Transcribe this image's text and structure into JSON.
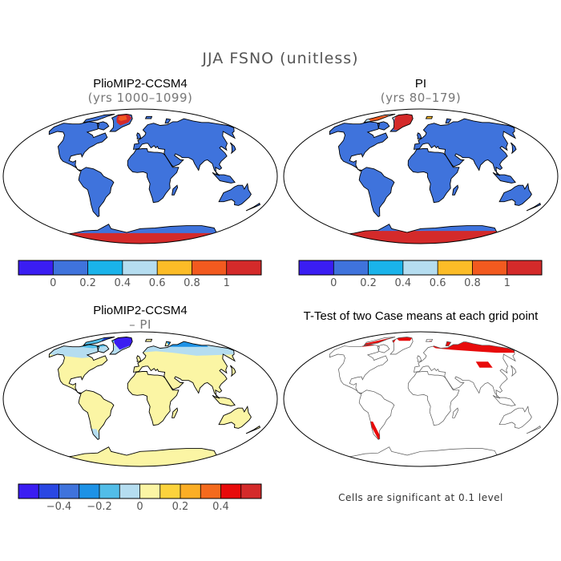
{
  "title": "JJA FSNO (unitless)",
  "panels": [
    {
      "title": "PlioMIP2-CCSM4",
      "subtitle": "(yrs 1000–1099)"
    },
    {
      "title": "PI",
      "subtitle": "(yrs 80–179)"
    },
    {
      "title": "PlioMIP2-CCSM4",
      "subtitle": "– PI"
    },
    {
      "title": "T-Test of two Case means at each grid point",
      "subtitle": ""
    }
  ],
  "colorbars": [
    {
      "colors": [
        "#3a1df2",
        "#3f73dc",
        "#1ab3ea",
        "#b5ddf0",
        "#fcbc27",
        "#f25a1f",
        "#d42a2a"
      ],
      "ticks": [
        "0",
        "0.2",
        "0.4",
        "0.6",
        "0.8",
        "1"
      ]
    },
    {
      "colors": [
        "#3a1df2",
        "#2a47e3",
        "#3f73dc",
        "#1d92e6",
        "#52bde8",
        "#b5ddf0",
        "#fbf5a4",
        "#fcd33c",
        "#fbae25",
        "#f46a1d",
        "#e80b0b",
        "#d42a2a"
      ],
      "ticks": [
        "−0.4",
        "−0.2",
        "0",
        "0.2",
        "0.4"
      ]
    }
  ],
  "note": "Cells are significant at 0.1 level",
  "colors": {
    "land_snowfree": "#3f73dc",
    "land_diff_zero": "#fbf5a4",
    "snow_high": "#d42a2a",
    "significant": "#e80b0b"
  }
}
